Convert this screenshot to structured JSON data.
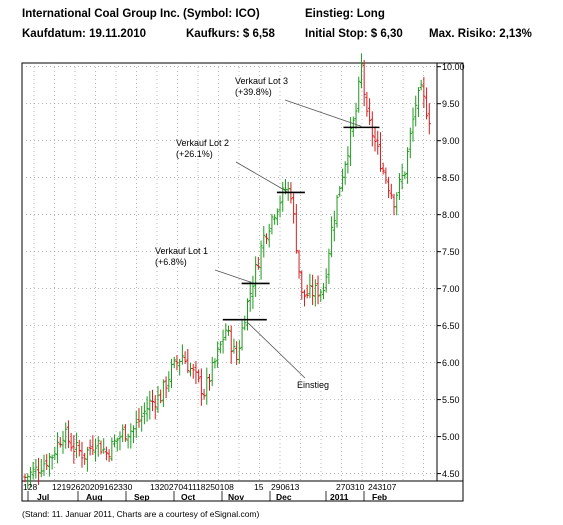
{
  "header": {
    "company": "International Coal Group Inc. (Symbol: ICO)",
    "entry_type": "Einstieg: Long",
    "buy_date": "Kaufdatum: 19.11.2010",
    "buy_price": "Kaufkurs: $ 6,58",
    "initial_stop": "Initial Stop: $ 6,30",
    "max_risk": "Max. Risiko: 2,13%"
  },
  "footer": "(Stand: 11. Januar 2011, Charts are a courtesy of eSignal.com)",
  "chart_data": {
    "type": "bar",
    "subtype": "ohlc",
    "ylim": [
      4.4,
      10.05
    ],
    "y_ticks": [
      "10.00",
      "9.50",
      "9.00",
      "8.50",
      "8.00",
      "7.50",
      "7.00",
      "6.50",
      "6.00",
      "5.50",
      "5.00",
      "4.50"
    ],
    "y_tick_values": [
      10.0,
      9.5,
      9.0,
      8.5,
      8.0,
      7.5,
      7.0,
      6.5,
      6.0,
      5.5,
      5.0,
      4.5
    ],
    "day_tick_labels": [
      "128",
      "12192620209162330",
      "132027041118250108",
      "15",
      "290613",
      "270310",
      "243107"
    ],
    "month_labels": [
      "Jul",
      "Aug",
      "Sep",
      "Oct",
      "Nov",
      "Dec",
      "2011",
      "Feb"
    ],
    "grid": true,
    "bar_count": 150,
    "waypoints": [
      [
        0,
        4.45
      ],
      [
        4,
        4.55
      ],
      [
        10,
        4.75
      ],
      [
        14,
        5.05
      ],
      [
        18,
        4.85
      ],
      [
        22,
        4.75
      ],
      [
        26,
        4.95
      ],
      [
        30,
        4.78
      ],
      [
        36,
        5.05
      ],
      [
        40,
        5.1
      ],
      [
        46,
        5.45
      ],
      [
        50,
        5.55
      ],
      [
        54,
        5.9
      ],
      [
        58,
        6.1
      ],
      [
        62,
        5.85
      ],
      [
        66,
        5.6
      ],
      [
        70,
        6.0
      ],
      [
        74,
        6.45
      ],
      [
        78,
        6.05
      ],
      [
        81,
        6.65
      ],
      [
        84,
        7.1
      ],
      [
        88,
        7.7
      ],
      [
        92,
        8.05
      ],
      [
        96,
        8.35
      ],
      [
        98,
        8.3
      ],
      [
        102,
        6.9
      ],
      [
        106,
        6.95
      ],
      [
        110,
        7.0
      ],
      [
        113,
        7.8
      ],
      [
        116,
        8.4
      ],
      [
        119,
        8.9
      ],
      [
        122,
        9.4
      ],
      [
        124,
        10.0
      ],
      [
        126,
        9.3
      ],
      [
        128,
        9.1
      ],
      [
        132,
        8.6
      ],
      [
        136,
        8.2
      ],
      [
        140,
        8.6
      ],
      [
        144,
        9.5
      ],
      [
        146,
        9.65
      ],
      [
        150,
        9.2
      ]
    ],
    "annotations": [
      {
        "title": "Verkauf Lot 3",
        "value": "(+39.8%)",
        "x": 124,
        "y": 9.18,
        "width": 18
      },
      {
        "title": "Verkauf Lot 2",
        "value": "(+26.1%)",
        "x": 98,
        "y": 8.3,
        "width": 14
      },
      {
        "title": "Verkauf Lot 1",
        "value": "(+6.8%)",
        "x": 85,
        "y": 7.07,
        "width": 14
      },
      {
        "title": "",
        "value": "Einstieg",
        "x": 81,
        "y": 6.58,
        "width": 22
      }
    ]
  }
}
